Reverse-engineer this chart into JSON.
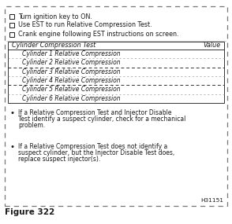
{
  "figure_label": "Figure 322",
  "reference_code": "H31151",
  "checkbox_items": [
    "Turn ignition key to ON.",
    "Use EST to run Relative Compression Test.",
    "Crank engine following EST instructions on screen."
  ],
  "table_header_left": "Cylinder Compression Test",
  "table_header_right": "Value",
  "table_rows": [
    "Cylinder 1 Relative Compression",
    "Cylinder 2 Relative Compression",
    "Cylinder 3 Relative Compression",
    "Cylinder 4 Relative Compression",
    "Cylinder 5 Relative Compression",
    "Cylinder 6 Relative Compression"
  ],
  "bullet_lines": [
    [
      "If a Relative Compression Test and Injector Disable",
      "Test identify a suspect cylinder, check for a mechanical",
      "problem."
    ],
    [
      "If a Relative Compression Test does not identify a",
      "suspect cylinder, but the Injector Disable Test does,",
      "replace suspect injector(s)."
    ]
  ],
  "outer_border_color": "#777777",
  "table_border_color": "#333333",
  "row_sep_color_light": "#999999",
  "row_sep_color_dark": "#333333",
  "bg_color": "#ffffff",
  "text_color": "#1a1a1a",
  "font_size": 5.8,
  "header_font_size": 5.8,
  "bullet_font_size": 5.5,
  "figure_label_font_size": 7.5
}
